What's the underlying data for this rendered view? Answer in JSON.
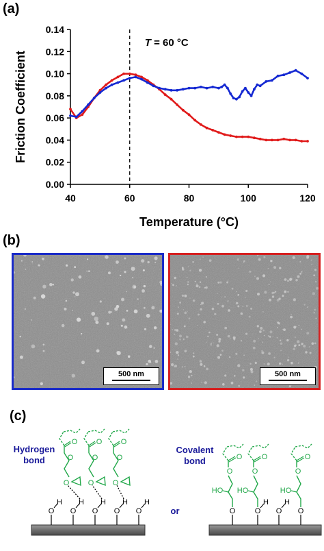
{
  "panels": {
    "a": "(a)",
    "b": "(b)",
    "c": "(c)"
  },
  "chart_data": {
    "type": "line",
    "title": "",
    "xlabel": "Temperature (°C)",
    "ylabel": "Friction Coefficient",
    "xlim": [
      40,
      120
    ],
    "ylim": [
      0,
      0.14
    ],
    "xticks": [
      "40",
      "60",
      "80",
      "100",
      "120"
    ],
    "yticks": [
      "0.00",
      "0.02",
      "0.04",
      "0.06",
      "0.08",
      "0.10",
      "0.12",
      "0.14"
    ],
    "grid": false,
    "annotation": {
      "text_italic": "T",
      "text_rest": " = 60 °C",
      "x": 60
    },
    "series": [
      {
        "color": "#1428d2",
        "x": [
          40,
          42,
          44,
          46,
          48,
          50,
          52,
          54,
          56,
          58,
          60,
          62,
          64,
          66,
          68,
          70,
          72,
          74,
          76,
          78,
          80,
          82,
          84,
          86,
          88,
          90,
          91,
          92,
          93,
          94,
          95,
          96,
          97,
          98,
          99,
          100,
          101,
          102,
          103,
          104,
          106,
          108,
          110,
          112,
          114,
          116,
          118,
          120
        ],
        "values": [
          0.062,
          0.061,
          0.066,
          0.072,
          0.078,
          0.083,
          0.087,
          0.09,
          0.092,
          0.094,
          0.096,
          0.097,
          0.095,
          0.092,
          0.089,
          0.087,
          0.086,
          0.085,
          0.085,
          0.086,
          0.087,
          0.087,
          0.088,
          0.087,
          0.088,
          0.087,
          0.088,
          0.09,
          0.087,
          0.082,
          0.078,
          0.077,
          0.079,
          0.084,
          0.087,
          0.083,
          0.08,
          0.086,
          0.09,
          0.089,
          0.093,
          0.094,
          0.098,
          0.099,
          0.101,
          0.103,
          0.1,
          0.096
        ]
      },
      {
        "color": "#e01a1a",
        "x": [
          40,
          42,
          44,
          46,
          48,
          50,
          52,
          54,
          56,
          58,
          60,
          62,
          64,
          66,
          68,
          70,
          72,
          74,
          76,
          78,
          80,
          82,
          84,
          86,
          88,
          90,
          92,
          94,
          96,
          98,
          100,
          102,
          104,
          106,
          108,
          110,
          112,
          114,
          116,
          118,
          120
        ],
        "values": [
          0.068,
          0.06,
          0.063,
          0.07,
          0.078,
          0.085,
          0.09,
          0.094,
          0.097,
          0.1,
          0.1,
          0.099,
          0.097,
          0.094,
          0.09,
          0.086,
          0.081,
          0.077,
          0.072,
          0.067,
          0.063,
          0.058,
          0.054,
          0.051,
          0.049,
          0.047,
          0.045,
          0.044,
          0.043,
          0.043,
          0.043,
          0.042,
          0.041,
          0.04,
          0.04,
          0.04,
          0.041,
          0.04,
          0.04,
          0.039,
          0.039
        ]
      }
    ]
  },
  "sem": [
    {
      "border_color": "#1a2bc8",
      "scale_label": "500 nm"
    },
    {
      "border_color": "#d62020",
      "scale_label": "500 nm"
    }
  ],
  "scheme": {
    "left_label_line1": "Hydrogen",
    "left_label_line2": "bond",
    "right_label_line1": "Covalent",
    "right_label_line2": "bond",
    "or_label": "or",
    "label_color": "#1a1a9a",
    "chem_color": "#22a84a",
    "atom_o": "O",
    "atom_h": "H",
    "atom_ho": "HO"
  }
}
